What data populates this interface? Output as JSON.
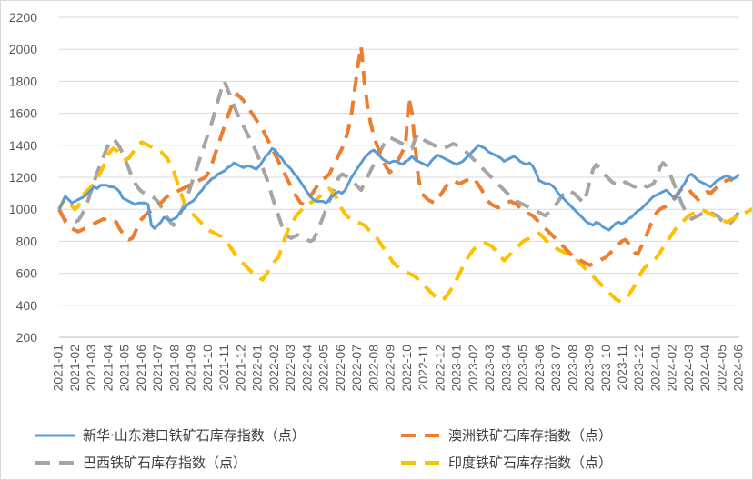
{
  "chart_data": {
    "type": "line",
    "title": "",
    "xlabel": "",
    "ylabel": "",
    "ylim": [
      200,
      2200
    ],
    "yticks": [
      200,
      400,
      600,
      800,
      1000,
      1200,
      1400,
      1600,
      1800,
      2000,
      2200
    ],
    "grid": "horizontal",
    "legend_position": "bottom",
    "x_tick_labels": [
      "2021-01",
      "2021-02",
      "2021-03",
      "2021-04",
      "2021-05",
      "2021-06",
      "2021-07",
      "2021-08",
      "2021-09",
      "2021-10",
      "2021-11",
      "2021-12",
      "2022-01",
      "2022-02",
      "2022-03",
      "2022-04",
      "2022-05",
      "2022-06",
      "2022-07",
      "2022-08",
      "2022-09",
      "2022-10",
      "2022-11",
      "2022-12",
      "2023-01",
      "2023-02",
      "2023-03",
      "2023-04",
      "2023-05",
      "2023-06",
      "2023-07",
      "2023-08",
      "2023-09",
      "2023-10",
      "2023-11",
      "2023-12",
      "2024-01",
      "2024-02",
      "2024-03",
      "2024-04",
      "2024-05",
      "2024-06"
    ],
    "x_start": "2021-01",
    "x_step": "weekly",
    "series": [
      {
        "name": "新华·山东港口铁矿石库存指数（点）",
        "color": "#5b9bd5",
        "style": "solid",
        "values": [
          1000,
          1040,
          1080,
          1060,
          1040,
          1050,
          1060,
          1070,
          1080,
          1100,
          1120,
          1140,
          1130,
          1150,
          1150,
          1150,
          1140,
          1140,
          1130,
          1110,
          1070,
          1060,
          1050,
          1040,
          1030,
          1040,
          1040,
          1040,
          1030,
          900,
          880,
          900,
          920,
          950,
          940,
          930,
          940,
          950,
          980,
          1000,
          1020,
          1040,
          1050,
          1070,
          1100,
          1120,
          1150,
          1170,
          1190,
          1200,
          1220,
          1230,
          1240,
          1260,
          1270,
          1290,
          1280,
          1270,
          1260,
          1270,
          1270,
          1260,
          1250,
          1270,
          1300,
          1330,
          1350,
          1380,
          1370,
          1340,
          1320,
          1290,
          1270,
          1250,
          1220,
          1200,
          1170,
          1140,
          1110,
          1080,
          1060,
          1050,
          1050,
          1050,
          1040,
          1060,
          1080,
          1100,
          1110,
          1100,
          1120,
          1160,
          1200,
          1230,
          1260,
          1290,
          1320,
          1340,
          1360,
          1370,
          1350,
          1330,
          1310,
          1300,
          1290,
          1300,
          1300,
          1290,
          1280,
          1300,
          1310,
          1330,
          1310,
          1300,
          1290,
          1280,
          1270,
          1300,
          1320,
          1340,
          1330,
          1320,
          1310,
          1300,
          1290,
          1280,
          1290,
          1300,
          1320,
          1340,
          1360,
          1380,
          1400,
          1390,
          1380,
          1360,
          1350,
          1340,
          1330,
          1320,
          1300,
          1310,
          1320,
          1330,
          1320,
          1300,
          1290,
          1280,
          1290,
          1270,
          1230,
          1180,
          1170,
          1160,
          1160,
          1150,
          1130,
          1100,
          1080,
          1060,
          1040,
          1020,
          1000,
          980,
          960,
          940,
          920,
          910,
          900,
          920,
          910,
          890,
          880,
          870,
          890,
          910,
          920,
          910,
          920,
          940,
          950,
          970,
          990,
          1000,
          1020,
          1040,
          1060,
          1080,
          1090,
          1100,
          1110,
          1120,
          1100,
          1080,
          1070,
          1100,
          1140,
          1170,
          1210,
          1220,
          1200,
          1180,
          1170,
          1160,
          1150,
          1140,
          1160,
          1180,
          1190,
          1200,
          1210,
          1200,
          1190,
          1200,
          1220
        ]
      },
      {
        "name": "澳洲铁矿石库存指数（点）",
        "color": "#ed7d31",
        "style": "dashed",
        "values": [
          1000,
          960,
          920,
          900,
          880,
          870,
          860,
          870,
          880,
          890,
          900,
          910,
          920,
          930,
          940,
          930,
          920,
          930,
          920,
          880,
          850,
          820,
          810,
          820,
          860,
          900,
          940,
          960,
          980,
          990,
          1000,
          1020,
          1040,
          1060,
          1080,
          1090,
          1100,
          1110,
          1120,
          1130,
          1140,
          1150,
          1160,
          1170,
          1180,
          1190,
          1200,
          1230,
          1280,
          1340,
          1400,
          1460,
          1520,
          1580,
          1630,
          1680,
          1720,
          1700,
          1680,
          1650,
          1620,
          1590,
          1560,
          1530,
          1500,
          1460,
          1420,
          1380,
          1340,
          1300,
          1260,
          1220,
          1180,
          1140,
          1100,
          1070,
          1040,
          1030,
          1050,
          1080,
          1110,
          1140,
          1170,
          1190,
          1200,
          1220,
          1260,
          1300,
          1340,
          1380,
          1430,
          1500,
          1600,
          1750,
          1900,
          2020,
          1800,
          1650,
          1540,
          1460,
          1400,
          1350,
          1300,
          1260,
          1230,
          1250,
          1280,
          1320,
          1360,
          1400,
          1700,
          1600,
          1400,
          1200,
          1100,
          1080,
          1060,
          1050,
          1040,
          1060,
          1090,
          1120,
          1150,
          1170,
          1180,
          1170,
          1160,
          1170,
          1180,
          1190,
          1200,
          1180,
          1150,
          1120,
          1080,
          1050,
          1030,
          1020,
          1010,
          1020,
          1030,
          1040,
          1050,
          1040,
          1030,
          1010,
          990,
          980,
          970,
          960,
          940,
          920,
          900,
          880,
          860,
          840,
          820,
          800,
          780,
          760,
          740,
          720,
          700,
          690,
          680,
          670,
          660,
          650,
          660,
          670,
          680,
          690,
          700,
          720,
          740,
          760,
          780,
          800,
          810,
          790,
          760,
          730,
          720,
          760,
          800,
          850,
          900,
          940,
          980,
          1000,
          1010,
          1020,
          1030,
          1050,
          1080,
          1110,
          1130,
          1140,
          1130,
          1100,
          1080,
          1060,
          1080,
          1100,
          1110,
          1100,
          1120,
          1140,
          1160,
          1170,
          1180,
          1190,
          1180
        ]
      },
      {
        "name": "巴西铁矿石库存指数（点）",
        "color": "#a5a5a5",
        "style": "dashed",
        "values": [
          1000,
          960,
          930,
          920,
          910,
          920,
          930,
          960,
          1000,
          1050,
          1110,
          1170,
          1230,
          1280,
          1330,
          1380,
          1420,
          1440,
          1420,
          1390,
          1350,
          1300,
          1250,
          1200,
          1160,
          1130,
          1110,
          1100,
          1090,
          1080,
          1070,
          1050,
          1020,
          980,
          950,
          920,
          900,
          930,
          970,
          1010,
          1060,
          1120,
          1180,
          1240,
          1300,
          1360,
          1420,
          1480,
          1540,
          1610,
          1680,
          1750,
          1800,
          1750,
          1700,
          1650,
          1600,
          1560,
          1520,
          1480,
          1440,
          1400,
          1360,
          1310,
          1260,
          1210,
          1150,
          1080,
          1020,
          960,
          900,
          860,
          830,
          820,
          830,
          840,
          830,
          820,
          810,
          800,
          810,
          850,
          900,
          950,
          1000,
          1050,
          1100,
          1150,
          1200,
          1220,
          1210,
          1200,
          1180,
          1160,
          1140,
          1120,
          1160,
          1200,
          1240,
          1280,
          1320,
          1360,
          1400,
          1430,
          1450,
          1440,
          1430,
          1420,
          1410,
          1400,
          1390,
          1380,
          1440,
          1470,
          1450,
          1430,
          1420,
          1410,
          1400,
          1390,
          1380,
          1380,
          1390,
          1400,
          1410,
          1400,
          1390,
          1380,
          1360,
          1340,
          1320,
          1300,
          1280,
          1260,
          1240,
          1220,
          1200,
          1180,
          1160,
          1140,
          1120,
          1100,
          1080,
          1060,
          1050,
          1040,
          1030,
          1020,
          1010,
          1000,
          990,
          980,
          970,
          960,
          980,
          1000,
          1020,
          1050,
          1080,
          1100,
          1120,
          1110,
          1100,
          1080,
          1060,
          1040,
          1100,
          1180,
          1250,
          1280,
          1260,
          1230,
          1210,
          1190,
          1170,
          1160,
          1160,
          1150,
          1170,
          1160,
          1150,
          1140,
          1150,
          1160,
          1150,
          1140,
          1150,
          1160,
          1200,
          1260,
          1290,
          1270,
          1230,
          1180,
          1130,
          1080,
          1030,
          990,
          960,
          940,
          950,
          960,
          970,
          980,
          990,
          980,
          970,
          960,
          940,
          920,
          900,
          910,
          930,
          960,
          990,
          1000,
          990
        ]
      },
      {
        "name": "印度铁矿石库存指数（点）",
        "color": "#ffc000",
        "style": "dashed",
        "values": [
          1000,
          1040,
          1080,
          1060,
          1020,
          1000,
          1020,
          1060,
          1100,
          1120,
          1140,
          1160,
          1190,
          1230,
          1270,
          1320,
          1360,
          1380,
          1370,
          1350,
          1330,
          1310,
          1320,
          1350,
          1380,
          1410,
          1420,
          1410,
          1400,
          1390,
          1380,
          1370,
          1360,
          1340,
          1320,
          1280,
          1240,
          1180,
          1120,
          1060,
          1020,
          990,
          970,
          950,
          930,
          910,
          890,
          870,
          860,
          850,
          840,
          830,
          810,
          790,
          760,
          730,
          700,
          680,
          660,
          640,
          620,
          600,
          580,
          570,
          560,
          590,
          620,
          650,
          680,
          700,
          760,
          820,
          870,
          910,
          940,
          970,
          990,
          1010,
          1030,
          1040,
          1050,
          1060,
          1080,
          1100,
          1120,
          1130,
          1110,
          1080,
          1040,
          1000,
          970,
          950,
          940,
          930,
          920,
          910,
          900,
          880,
          860,
          840,
          820,
          790,
          760,
          730,
          700,
          670,
          650,
          630,
          620,
          610,
          600,
          590,
          580,
          560,
          540,
          520,
          500,
          480,
          460,
          440,
          430,
          440,
          460,
          490,
          520,
          560,
          600,
          640,
          680,
          710,
          740,
          760,
          770,
          780,
          790,
          780,
          770,
          750,
          730,
          700,
          680,
          700,
          720,
          740,
          760,
          780,
          800,
          810,
          820,
          830,
          840,
          850,
          830,
          810,
          790,
          770,
          760,
          750,
          740,
          730,
          720,
          710,
          700,
          680,
          660,
          640,
          620,
          600,
          580,
          560,
          540,
          520,
          500,
          480,
          460,
          440,
          430,
          420,
          440,
          460,
          490,
          520,
          560,
          600,
          630,
          650,
          660,
          680,
          700,
          730,
          760,
          790,
          820,
          850,
          880,
          900,
          920,
          940,
          960,
          970,
          980,
          990,
          1000,
          990,
          980,
          970,
          960,
          950,
          940,
          930,
          920,
          930,
          940,
          950,
          960,
          970,
          980,
          990,
          1000,
          990
        ]
      }
    ]
  },
  "legend": [
    "新华·山东港口铁矿石库存指数（点）",
    "澳洲铁矿石库存指数（点）",
    "巴西铁矿石库存指数（点）",
    "印度铁矿石库存指数（点）"
  ]
}
